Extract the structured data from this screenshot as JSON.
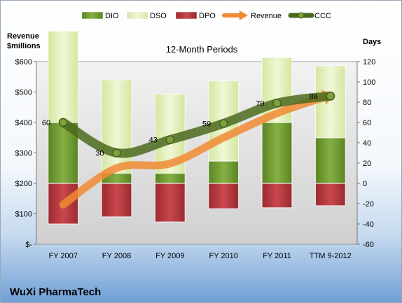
{
  "chart_data": {
    "type": "bar",
    "title": "12-Month Periods",
    "company": "WuXi PharmaTech",
    "ylabel_left": "Revenue\n$millions",
    "ylabel_right": "Days",
    "categories": [
      "FY 2007",
      "FY 2008",
      "FY 2009",
      "FY 2010",
      "FY 2011",
      "TTM 9-2012"
    ],
    "left_axis": {
      "min": 0,
      "max": 600,
      "step": 100,
      "tick_labels": [
        "$-",
        "$100",
        "$200",
        "$300",
        "$400",
        "$500",
        "$600"
      ]
    },
    "right_axis": {
      "min": -60,
      "max": 120,
      "step": 20,
      "tick_labels": [
        "-60",
        "-40",
        "-20",
        "0",
        "20",
        "40",
        "60",
        "80",
        "100",
        "120"
      ]
    },
    "bar_series": [
      {
        "name": "DIO",
        "color": "#6e9a2e",
        "values": [
          60,
          10,
          10,
          22,
          60,
          45
        ]
      },
      {
        "name": "DSO",
        "color": "#e2efb9",
        "values": [
          90,
          92,
          78,
          79,
          64,
          71
        ]
      },
      {
        "name": "DPO",
        "color": "#b7343a",
        "values": [
          -40,
          -33,
          -38,
          -25,
          -24,
          -22
        ]
      }
    ],
    "line_series": [
      {
        "name": "Revenue",
        "axis": "left",
        "color": "#f08a32",
        "values": [
          130,
          250,
          265,
          350,
          430,
          490
        ]
      },
      {
        "name": "CCC",
        "axis": "right",
        "color": "#4b6a1e",
        "values": [
          60,
          30,
          43,
          59,
          79,
          86
        ],
        "data_labels": [
          "60",
          "30",
          "43",
          "59",
          "79",
          "86"
        ]
      }
    ],
    "legend": {
      "placement": "top",
      "items": [
        {
          "label": "DIO",
          "kind": "bar",
          "color": "#6e9a2e"
        },
        {
          "label": "DSO",
          "kind": "bar",
          "color": "#e2efb9"
        },
        {
          "label": "DPO",
          "kind": "bar",
          "color": "#b7343a"
        },
        {
          "label": "Revenue",
          "kind": "arrow",
          "color": "#f08a32"
        },
        {
          "label": "CCC",
          "kind": "line-marker",
          "color": "#4b6a1e"
        }
      ]
    },
    "grid": false
  }
}
